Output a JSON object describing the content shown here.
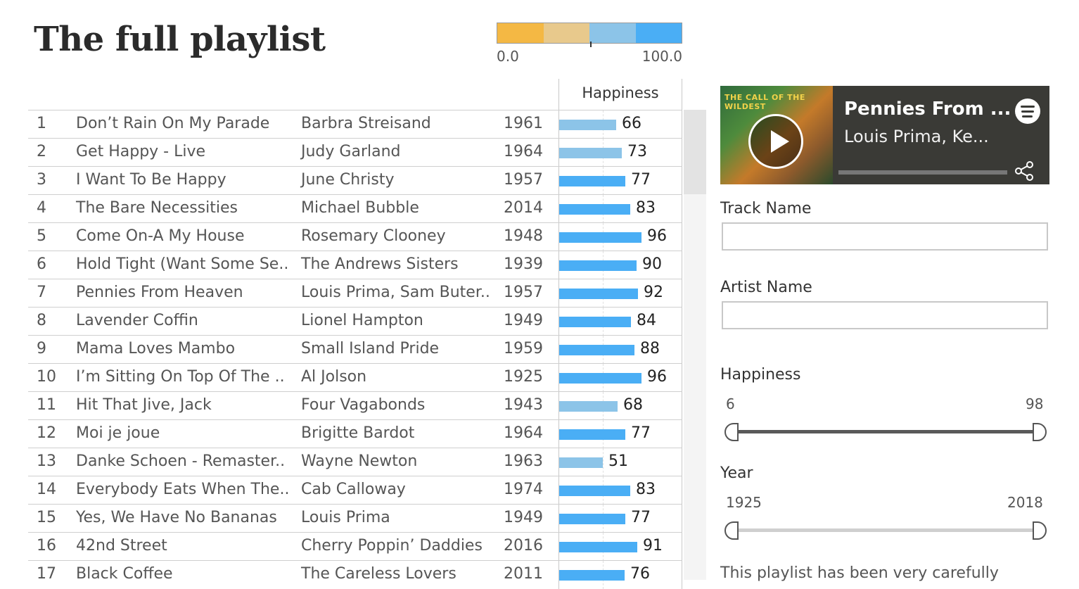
{
  "title": "The full playlist",
  "legend": {
    "min": "0.0",
    "max": "100.0",
    "colors": [
      "#f4b844",
      "#e8c98c",
      "#8cc4e8",
      "#4aaef5"
    ]
  },
  "table": {
    "column_header": "Happiness",
    "rows": [
      {
        "num": "1",
        "track": "Don’t Rain On My Parade",
        "artist": "Barbra Streisand",
        "year": "1961",
        "happiness": 66
      },
      {
        "num": "2",
        "track": "Get Happy - Live",
        "artist": "Judy Garland",
        "year": "1964",
        "happiness": 73
      },
      {
        "num": "3",
        "track": "I Want To Be Happy",
        "artist": "June Christy",
        "year": "1957",
        "happiness": 77
      },
      {
        "num": "4",
        "track": "The Bare Necessities",
        "artist": "Michael Bubble",
        "year": "2014",
        "happiness": 83
      },
      {
        "num": "5",
        "track": "Come On-A My House",
        "artist": "Rosemary Clooney",
        "year": "1948",
        "happiness": 96
      },
      {
        "num": "6",
        "track": "Hold Tight (Want Some Se..",
        "artist": "The Andrews Sisters",
        "year": "1939",
        "happiness": 90
      },
      {
        "num": "7",
        "track": "Pennies From Heaven",
        "artist": "Louis Prima, Sam Buter..",
        "year": "1957",
        "happiness": 92
      },
      {
        "num": "8",
        "track": "Lavender Coffin",
        "artist": "Lionel Hampton",
        "year": "1949",
        "happiness": 84
      },
      {
        "num": "9",
        "track": "Mama Loves Mambo",
        "artist": "Small Island Pride",
        "year": "1959",
        "happiness": 88
      },
      {
        "num": "10",
        "track": "I’m Sitting On Top Of The ..",
        "artist": "Al Jolson",
        "year": "1925",
        "happiness": 96
      },
      {
        "num": "11",
        "track": "Hit That Jive, Jack",
        "artist": "Four Vagabonds",
        "year": "1943",
        "happiness": 68
      },
      {
        "num": "12",
        "track": "Moi je joue",
        "artist": "Brigitte Bardot",
        "year": "1964",
        "happiness": 77
      },
      {
        "num": "13",
        "track": "Danke Schoen - Remaster..",
        "artist": "Wayne Newton",
        "year": "1963",
        "happiness": 51
      },
      {
        "num": "14",
        "track": "Everybody Eats When The..",
        "artist": "Cab Calloway",
        "year": "1974",
        "happiness": 83
      },
      {
        "num": "15",
        "track": "Yes, We Have No Bananas",
        "artist": "Louis Prima",
        "year": "1949",
        "happiness": 77
      },
      {
        "num": "16",
        "track": "42nd Street",
        "artist": "Cherry Poppin’ Daddies",
        "year": "2016",
        "happiness": 91
      },
      {
        "num": "17",
        "track": "Black Coffee",
        "artist": "The Careless Lovers",
        "year": "2011",
        "happiness": 76
      }
    ]
  },
  "player": {
    "track": "Pennies From ...",
    "artist": "Louis Prima, Ke...",
    "album_text": "THE CALL OF THE WILDEST"
  },
  "filters": {
    "track_label": "Track Name",
    "artist_label": "Artist Name",
    "happiness_label": "Happiness",
    "happiness_min": "6",
    "happiness_max": "98",
    "year_label": "Year",
    "year_min": "1925",
    "year_max": "2018"
  },
  "note": "This playlist has been very carefully"
}
